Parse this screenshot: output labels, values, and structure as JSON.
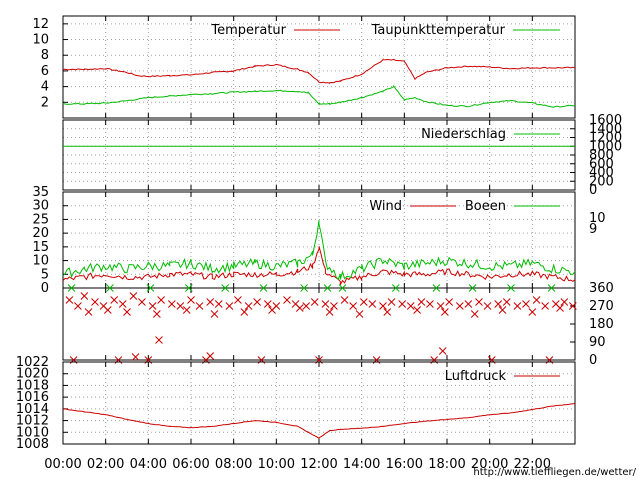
{
  "x_axis": {
    "range_hours": [
      0,
      24
    ],
    "ticks": [
      "00:00",
      "02:00",
      "04:00",
      "06:00",
      "08:00",
      "10:00",
      "12:00",
      "14:00",
      "16:00",
      "18:00",
      "20:00",
      "22:00"
    ]
  },
  "credit": "http://www.tiefflie gen.de/wetter/",
  "colors": {
    "red": "#cc0000",
    "green": "#00bb00",
    "axis": "#000000"
  },
  "chart_data": [
    {
      "id": "temperature",
      "type": "line",
      "ylim": [
        0,
        13
      ],
      "yticks": [
        "2",
        "4",
        "6",
        "8",
        "10",
        "12"
      ],
      "yticks_values": [
        2,
        4,
        6,
        8,
        10,
        12
      ],
      "legend": "top-right",
      "series": [
        {
          "name": "Temperatur",
          "color": "#cc0000",
          "x": [
            0,
            1,
            2,
            3,
            3.5,
            4,
            5,
            6,
            7,
            8,
            9,
            10,
            11,
            11.5,
            12,
            12.5,
            13,
            14,
            15,
            15.5,
            16,
            16.5,
            17,
            18,
            19,
            20,
            21,
            22,
            23,
            24
          ],
          "values": [
            6.2,
            6.2,
            6.3,
            5.8,
            5.4,
            5.3,
            5.4,
            5.5,
            5.8,
            6.0,
            6.6,
            6.8,
            6.2,
            5.8,
            4.6,
            4.5,
            4.7,
            5.6,
            7.4,
            7.4,
            7.2,
            5.0,
            5.8,
            6.4,
            6.6,
            6.5,
            6.3,
            6.4,
            6.4,
            6.4
          ]
        },
        {
          "name": "Taupunkttemperatur",
          "color": "#00bb00",
          "x": [
            0,
            1,
            2,
            3,
            4,
            5,
            6,
            7,
            8,
            9,
            10,
            11,
            11.5,
            12,
            12.5,
            13,
            14,
            15,
            15.5,
            16,
            16.5,
            17,
            18,
            19,
            20,
            21,
            22,
            23,
            24
          ],
          "values": [
            1.8,
            1.8,
            1.9,
            2.2,
            2.6,
            2.8,
            3.0,
            3.1,
            3.3,
            3.4,
            3.5,
            3.4,
            3.2,
            1.8,
            1.8,
            2.0,
            2.6,
            3.4,
            4.0,
            2.3,
            2.6,
            2.1,
            1.6,
            1.5,
            2.0,
            2.2,
            1.9,
            1.4,
            1.6
          ]
        }
      ]
    },
    {
      "id": "precipitation",
      "type": "line",
      "ylim": [
        0,
        1600
      ],
      "yticks": [
        "0",
        "200",
        "400",
        "600",
        "800",
        "1000",
        "1200",
        "1400",
        "1600"
      ],
      "yticks_values": [
        0,
        200,
        400,
        600,
        800,
        1000,
        1200,
        1400,
        1600
      ],
      "y_axis_side": "right",
      "series": [
        {
          "name": "Niederschlag",
          "color": "#00bb00",
          "constant": 1000
        }
      ]
    },
    {
      "id": "wind",
      "type": "line",
      "ylim": [
        0,
        35
      ],
      "yticks": [
        "0",
        "5",
        "10",
        "15",
        "20",
        "25",
        "30",
        "35"
      ],
      "yticks_values": [
        0,
        5,
        10,
        15,
        20,
        25,
        30,
        35
      ],
      "y2ticks": [
        "9",
        "10"
      ],
      "y2ticks_values": [
        9,
        10
      ],
      "series": [
        {
          "name": "Wind",
          "color": "#cc0000",
          "x": [
            0,
            1,
            2,
            3,
            4,
            5,
            6,
            7,
            8,
            9,
            10,
            11,
            11.7,
            12,
            12.3,
            13,
            14,
            15,
            16,
            17,
            18,
            19,
            20,
            21,
            22,
            23,
            24
          ],
          "values": [
            3,
            4,
            5,
            4,
            4,
            5,
            5,
            4,
            5,
            5,
            5,
            6,
            8,
            15,
            6,
            2,
            4,
            6,
            5,
            5,
            6,
            5,
            4,
            5,
            5,
            4,
            3
          ]
        },
        {
          "name": "Boeen",
          "color": "#00bb00",
          "x": [
            0,
            1,
            2,
            3,
            4,
            5,
            6,
            7,
            8,
            9,
            10,
            11,
            11.7,
            12,
            12.3,
            13,
            14,
            15,
            16,
            17,
            18,
            19,
            20,
            21,
            22,
            23,
            24
          ],
          "values": [
            5,
            7,
            8,
            7,
            8,
            8,
            9,
            7,
            8,
            9,
            8,
            9,
            12,
            25,
            9,
            4,
            7,
            10,
            8,
            9,
            10,
            9,
            8,
            8,
            9,
            7,
            6
          ]
        }
      ]
    },
    {
      "id": "wind_direction",
      "type": "scatter",
      "ylim": [
        0,
        360
      ],
      "yticks": [
        "0",
        "90",
        "180",
        "270",
        "360"
      ],
      "yticks_values": [
        0,
        90,
        180,
        270,
        360
      ],
      "y_axis_side": "right",
      "marker": "x",
      "series": [
        {
          "name": "",
          "color": "#cc0000",
          "x": [
            0.3,
            0.7,
            1.0,
            1.5,
            1.9,
            2.4,
            2.8,
            3.3,
            3.7,
            4.2,
            4.6,
            5.1,
            5.5,
            6.0,
            6.4,
            6.9,
            7.3,
            7.8,
            8.2,
            8.7,
            9.1,
            9.6,
            10.0,
            10.5,
            10.9,
            11.4,
            11.8,
            12.3,
            12.7,
            13.2,
            13.6,
            14.1,
            14.5,
            15.0,
            15.4,
            15.9,
            16.3,
            16.8,
            17.2,
            17.7,
            18.1,
            18.6,
            19.0,
            19.5,
            19.9,
            20.4,
            20.8,
            21.3,
            21.7,
            22.2,
            22.6,
            23.1,
            23.5,
            23.9,
            1.2,
            2.1,
            3.0,
            4.4,
            5.8,
            7.1,
            8.5,
            9.8,
            11.1,
            12.5,
            13.9,
            15.2,
            16.6,
            17.9,
            19.3,
            20.6,
            22.0,
            23.3,
            0.5,
            2.6,
            4.0,
            6.7,
            9.3,
            12.0,
            14.7,
            17.4,
            20.1,
            22.8,
            3.4,
            4.5,
            6.9,
            17.8
          ],
          "values": [
            300,
            270,
            320,
            290,
            270,
            300,
            280,
            320,
            290,
            270,
            300,
            280,
            270,
            300,
            270,
            290,
            280,
            270,
            300,
            270,
            290,
            280,
            270,
            300,
            280,
            270,
            290,
            280,
            270,
            300,
            270,
            290,
            280,
            270,
            290,
            280,
            270,
            290,
            280,
            270,
            290,
            270,
            280,
            290,
            270,
            280,
            290,
            270,
            280,
            300,
            270,
            280,
            290,
            270,
            240,
            250,
            240,
            230,
            250,
            230,
            240,
            250,
            260,
            240,
            230,
            240,
            250,
            240,
            230,
            250,
            240,
            260,
            0,
            0,
            0,
            0,
            0,
            0,
            0,
            0,
            0,
            0,
            15,
            100,
            20,
            45
          ]
        },
        {
          "name": "",
          "color": "#00bb00",
          "x": [
            0.4,
            2.2,
            4.1,
            5.9,
            7.6,
            9.4,
            11.3,
            12.4,
            13.1,
            15.6,
            17.5,
            19.2,
            21.0,
            22.9
          ],
          "values": [
            360,
            360,
            360,
            360,
            360,
            360,
            360,
            360,
            360,
            360,
            360,
            360,
            360,
            360
          ]
        }
      ]
    },
    {
      "id": "pressure",
      "type": "line",
      "ylim": [
        1008,
        1022
      ],
      "yticks": [
        "1008",
        "1010",
        "1012",
        "1014",
        "1016",
        "1018",
        "1020",
        "1022"
      ],
      "yticks_values": [
        1008,
        1010,
        1012,
        1014,
        1016,
        1018,
        1020,
        1022
      ],
      "legend": "top-right",
      "series": [
        {
          "name": "Luftdruck",
          "color": "#cc0000",
          "x": [
            0,
            1,
            2,
            3,
            4,
            5,
            6,
            7,
            8,
            9,
            10,
            11,
            11.5,
            12,
            12.5,
            13,
            14,
            15,
            16,
            17,
            18,
            19,
            20,
            21,
            22,
            23,
            24
          ],
          "values": [
            1014.0,
            1013.5,
            1013.0,
            1012.2,
            1011.5,
            1011.0,
            1010.8,
            1011.0,
            1011.5,
            1012.0,
            1011.7,
            1011.0,
            1010.0,
            1009.0,
            1010.3,
            1010.5,
            1010.7,
            1011.0,
            1011.5,
            1011.9,
            1012.2,
            1012.5,
            1013.0,
            1013.3,
            1013.9,
            1014.5,
            1014.9
          ]
        }
      ]
    }
  ]
}
